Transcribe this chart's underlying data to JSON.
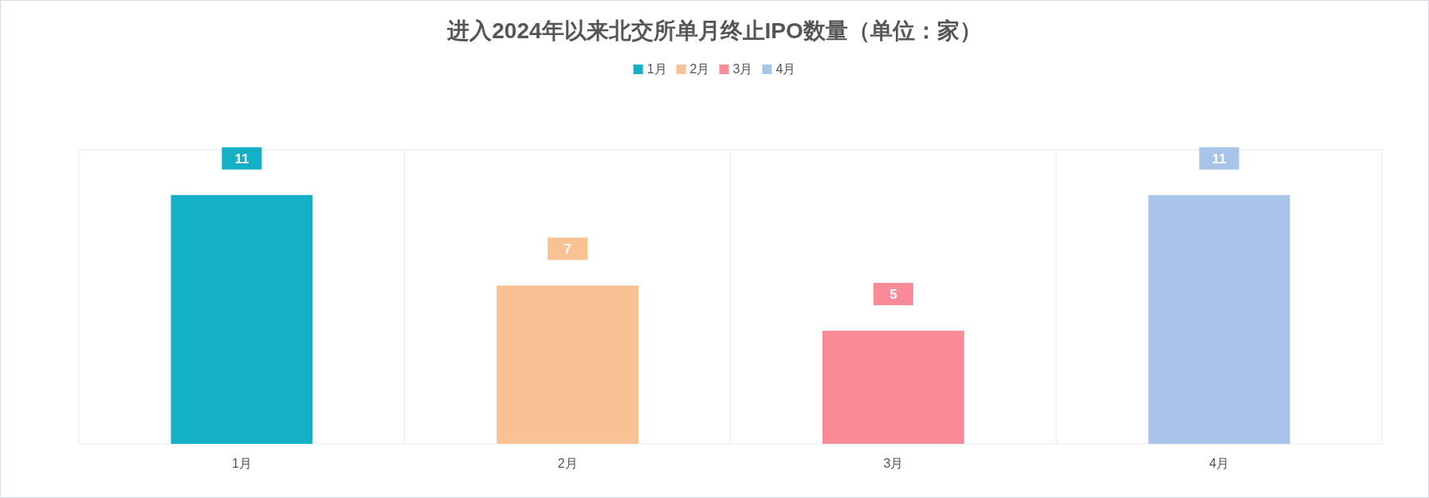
{
  "chart_data": {
    "type": "bar",
    "title": "进入2024年以来北交所单月终止IPO数量（单位：家）",
    "categories": [
      "1月",
      "2月",
      "3月",
      "4月"
    ],
    "series": [
      {
        "name": "1月",
        "color": "#14b0c6",
        "values": [
          11,
          null,
          null,
          null
        ]
      },
      {
        "name": "2月",
        "color": "#f9c295",
        "values": [
          null,
          7,
          null,
          null
        ]
      },
      {
        "name": "3月",
        "color": "#f98a98",
        "values": [
          null,
          null,
          5,
          null
        ]
      },
      {
        "name": "4月",
        "color": "#a8c4ea",
        "values": [
          null,
          null,
          null,
          11
        ]
      }
    ],
    "stacked": true,
    "ylim": [
      0,
      13
    ],
    "tick_labels": "x",
    "grid": "x",
    "legend": "top",
    "data_labels": true
  }
}
